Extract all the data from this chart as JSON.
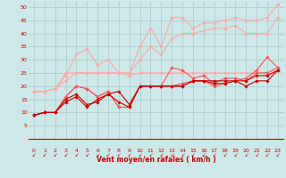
{
  "bg_color": "#cce8e8",
  "grid_color": "#aacccc",
  "xlabel": "Vent moyen/en rafales ( km/h )",
  "xlabel_color": "#cc0000",
  "tick_color": "#cc0000",
  "arrow_color": "#cc0000",
  "xlim": [
    -0.5,
    23.5
  ],
  "ylim": [
    0,
    52
  ],
  "yticks": [
    5,
    10,
    15,
    20,
    25,
    30,
    35,
    40,
    45,
    50
  ],
  "xticks": [
    0,
    1,
    2,
    3,
    4,
    5,
    6,
    7,
    8,
    9,
    10,
    11,
    12,
    13,
    14,
    15,
    16,
    17,
    18,
    19,
    20,
    21,
    22,
    23
  ],
  "series": [
    {
      "color": "#ffaaaa",
      "lw": 0.8,
      "x": [
        0,
        1,
        2,
        3,
        4,
        5,
        6,
        7,
        8,
        9,
        10,
        11,
        12,
        13,
        14,
        15,
        16,
        17,
        18,
        19,
        20,
        21,
        22,
        23
      ],
      "y": [
        18,
        18,
        19,
        25,
        25,
        25,
        25,
        25,
        25,
        25,
        35,
        42,
        35,
        46,
        46,
        42,
        44,
        44,
        45,
        46,
        45,
        45,
        46,
        51
      ]
    },
    {
      "color": "#ffaaaa",
      "lw": 0.8,
      "x": [
        0,
        1,
        2,
        3,
        4,
        5,
        6,
        7,
        8,
        9,
        10,
        11,
        12,
        13,
        14,
        15,
        16,
        17,
        18,
        19,
        20,
        21,
        22,
        23
      ],
      "y": [
        18,
        18,
        19,
        24,
        32,
        34,
        28,
        30,
        25,
        24,
        25,
        25,
        25,
        25,
        25,
        25,
        25,
        25,
        25,
        25,
        25,
        25,
        25,
        26
      ]
    },
    {
      "color": "#ffaaaa",
      "lw": 0.8,
      "x": [
        0,
        1,
        2,
        3,
        4,
        5,
        6,
        7,
        8,
        9,
        10,
        11,
        12,
        13,
        14,
        15,
        16,
        17,
        18,
        19,
        20,
        21,
        22,
        23
      ],
      "y": [
        18,
        18,
        19,
        22,
        25,
        25,
        25,
        25,
        25,
        25,
        30,
        35,
        32,
        38,
        40,
        40,
        41,
        42,
        42,
        43,
        40,
        40,
        40,
        46
      ]
    },
    {
      "color": "#ff5555",
      "lw": 0.8,
      "x": [
        0,
        1,
        2,
        3,
        4,
        5,
        6,
        7,
        8,
        9,
        10,
        11,
        12,
        13,
        14,
        15,
        16,
        17,
        18,
        19,
        20,
        21,
        22,
        23
      ],
      "y": [
        9,
        10,
        10,
        16,
        20,
        19,
        16,
        18,
        12,
        12,
        20,
        20,
        20,
        27,
        26,
        23,
        24,
        21,
        23,
        23,
        22,
        25,
        25,
        27
      ]
    },
    {
      "color": "#ff5555",
      "lw": 0.8,
      "x": [
        0,
        1,
        2,
        3,
        4,
        5,
        6,
        7,
        8,
        9,
        10,
        11,
        12,
        13,
        14,
        15,
        16,
        17,
        18,
        19,
        20,
        21,
        22,
        23
      ],
      "y": [
        9,
        10,
        10,
        16,
        20,
        19,
        16,
        18,
        12,
        12,
        20,
        20,
        20,
        20,
        21,
        22,
        22,
        20,
        21,
        22,
        23,
        26,
        31,
        27
      ]
    },
    {
      "color": "#cc0000",
      "lw": 0.8,
      "x": [
        0,
        1,
        2,
        3,
        4,
        5,
        6,
        7,
        8,
        9,
        10,
        11,
        12,
        13,
        14,
        15,
        16,
        17,
        18,
        19,
        20,
        21,
        22,
        23
      ],
      "y": [
        9,
        10,
        10,
        15,
        17,
        13,
        14,
        17,
        14,
        12,
        20,
        20,
        20,
        20,
        20,
        22,
        22,
        22,
        22,
        22,
        22,
        24,
        24,
        26
      ]
    },
    {
      "color": "#cc0000",
      "lw": 0.8,
      "x": [
        0,
        1,
        2,
        3,
        4,
        5,
        6,
        7,
        8,
        9,
        10,
        11,
        12,
        13,
        14,
        15,
        16,
        17,
        18,
        19,
        20,
        21,
        22,
        23
      ],
      "y": [
        9,
        10,
        10,
        14,
        16,
        12,
        15,
        17,
        18,
        13,
        20,
        20,
        20,
        20,
        20,
        22,
        22,
        21,
        21,
        22,
        20,
        22,
        22,
        26
      ]
    }
  ]
}
